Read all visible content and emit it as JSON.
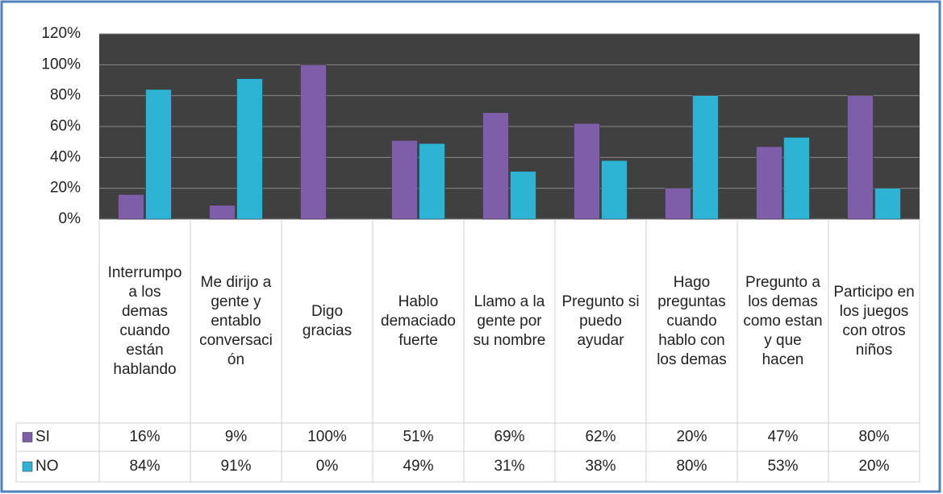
{
  "chart_data": {
    "type": "bar",
    "categories": [
      "Interrumpo a los demas cuando están hablando",
      "Me dirijo a gente y entablo conversación",
      "Digo gracias",
      "Hablo demaciado fuerte",
      "Llamo a la gente por su nombre",
      "Pregunto si puedo ayudar",
      "Hago preguntas cuando hablo con los demas",
      "Pregunto a los demas como estan y que hacen",
      "Participo en los juegos con otros niños"
    ],
    "series": [
      {
        "name": "SI",
        "color": "#7e5ea8",
        "values": [
          16,
          9,
          100,
          51,
          69,
          62,
          20,
          47,
          80
        ],
        "value_labels": [
          "16%",
          "9%",
          "100%",
          "51%",
          "69%",
          "62%",
          "20%",
          "47%",
          "80%"
        ]
      },
      {
        "name": "NO",
        "color": "#2db3d3",
        "values": [
          84,
          91,
          0,
          49,
          31,
          38,
          80,
          53,
          20
        ],
        "value_labels": [
          "84%",
          "91%",
          "0%",
          "49%",
          "31%",
          "38%",
          "80%",
          "53%",
          "20%"
        ]
      }
    ],
    "ylim": [
      0,
      120
    ],
    "yticks": [
      {
        "value": 0,
        "label": "0%"
      },
      {
        "value": 20,
        "label": "20%"
      },
      {
        "value": 40,
        "label": "40%"
      },
      {
        "value": 60,
        "label": "60%"
      },
      {
        "value": 80,
        "label": "80%"
      },
      {
        "value": 100,
        "label": "100%"
      },
      {
        "value": 120,
        "label": "120%"
      }
    ],
    "grid": true
  }
}
